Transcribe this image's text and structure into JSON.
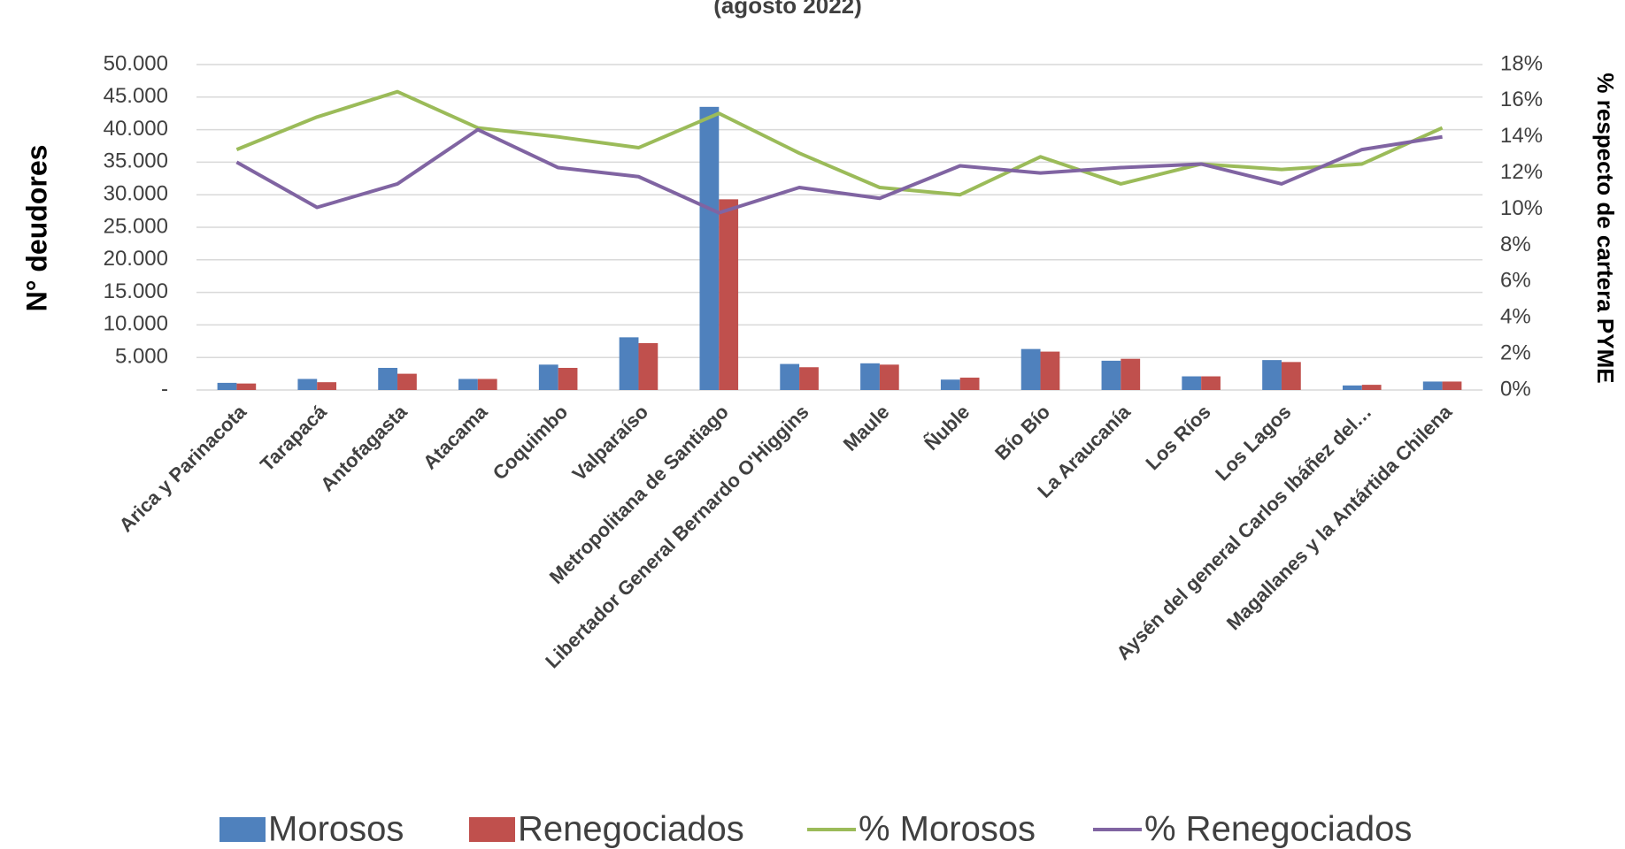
{
  "chart_data": {
    "type": "bar_line",
    "title": "(agosto 2022)",
    "y_label": "N° deudores",
    "y2_label": "% respecto de cartera PYME",
    "categories": [
      "Arica y Parinacota",
      "Tarapacá",
      "Antofagasta",
      "Atacama",
      "Coquimbo",
      "Valparaíso",
      "Metropolitana de Santiago",
      "Libertador General Bernardo O'Higgins",
      "Maule",
      "Ñuble",
      "Bío Bío",
      "La Araucanía",
      "Los Ríos",
      "Los Lagos",
      "Aysén del general Carlos Ibáñez del…",
      "Magallanes y la Antártida Chilena"
    ],
    "series": [
      {
        "name": "Morosos",
        "type": "bar",
        "color": "#4f81bd",
        "values": [
          1100,
          1700,
          3400,
          1700,
          3900,
          8100,
          43500,
          4000,
          4100,
          1600,
          6300,
          4500,
          2100,
          4600,
          700,
          1300
        ]
      },
      {
        "name": "Renegociados",
        "type": "bar",
        "color": "#c0504d",
        "values": [
          1000,
          1200,
          2500,
          1700,
          3400,
          7200,
          29300,
          3500,
          3900,
          1900,
          5900,
          4800,
          2100,
          4300,
          800,
          1300
        ]
      },
      {
        "name": "% Morosos",
        "type": "line",
        "axis": "y2",
        "color": "#9bbb59",
        "values": [
          13.3,
          15.1,
          16.5,
          14.5,
          14.0,
          13.4,
          15.3,
          13.1,
          11.2,
          10.8,
          12.9,
          11.4,
          12.5,
          12.2,
          12.5,
          14.5
        ]
      },
      {
        "name": "% Renegociados",
        "type": "line",
        "axis": "y2",
        "color": "#8064a2",
        "values": [
          12.6,
          10.1,
          11.4,
          14.4,
          12.3,
          11.8,
          9.8,
          11.2,
          10.6,
          12.4,
          12.0,
          12.3,
          12.5,
          11.4,
          13.3,
          14.0
        ]
      }
    ],
    "ylim": [
      0,
      50000
    ],
    "yticks": [
      {
        "value": 0,
        "label": "-"
      },
      {
        "value": 5000,
        "label": "5.000"
      },
      {
        "value": 10000,
        "label": "10.000"
      },
      {
        "value": 15000,
        "label": "15.000"
      },
      {
        "value": 20000,
        "label": "20.000"
      },
      {
        "value": 25000,
        "label": "25.000"
      },
      {
        "value": 30000,
        "label": "30.000"
      },
      {
        "value": 35000,
        "label": "35.000"
      },
      {
        "value": 40000,
        "label": "40.000"
      },
      {
        "value": 45000,
        "label": "45.000"
      },
      {
        "value": 50000,
        "label": "50.000"
      }
    ],
    "y2lim": [
      0,
      18
    ],
    "y2ticks": [
      {
        "value": 0,
        "label": "0%"
      },
      {
        "value": 2,
        "label": "2%"
      },
      {
        "value": 4,
        "label": "4%"
      },
      {
        "value": 6,
        "label": "6%"
      },
      {
        "value": 8,
        "label": "8%"
      },
      {
        "value": 10,
        "label": "10%"
      },
      {
        "value": 12,
        "label": "12%"
      },
      {
        "value": 14,
        "label": "14%"
      },
      {
        "value": 16,
        "label": "16%"
      },
      {
        "value": 18,
        "label": "18%"
      }
    ],
    "grid": true
  }
}
